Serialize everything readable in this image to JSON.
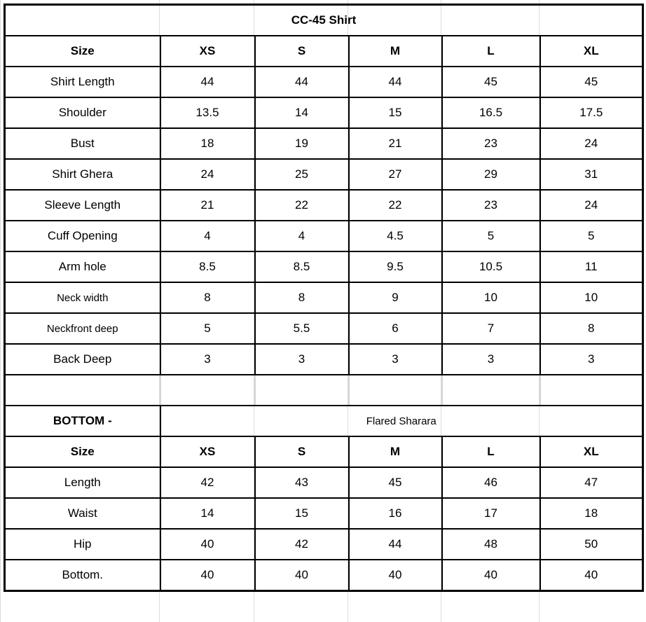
{
  "shirt": {
    "title": "CC-45 Shirt",
    "header": [
      "Size",
      "XS",
      "S",
      "M",
      "L",
      "XL"
    ],
    "rows": [
      {
        "label": "Shirt Length",
        "values": [
          "44",
          "44",
          "44",
          "45",
          "45"
        ]
      },
      {
        "label": "Shoulder",
        "values": [
          "13.5",
          "14",
          "15",
          "16.5",
          "17.5"
        ]
      },
      {
        "label": "Bust",
        "values": [
          "18",
          "19",
          "21",
          "23",
          "24"
        ]
      },
      {
        "label": "Shirt Ghera",
        "values": [
          "24",
          "25",
          "27",
          "29",
          "31"
        ]
      },
      {
        "label": "Sleeve Length",
        "values": [
          "21",
          "22",
          "22",
          "23",
          "24"
        ]
      },
      {
        "label": "Cuff Opening",
        "values": [
          "4",
          "4",
          "4.5",
          "5",
          "5"
        ]
      },
      {
        "label": "Arm hole",
        "values": [
          "8.5",
          "8.5",
          "9.5",
          "10.5",
          "11"
        ]
      },
      {
        "label": "Neck width",
        "values": [
          "8",
          "8",
          "9",
          "10",
          "10"
        ],
        "small": true
      },
      {
        "label": "Neckfront deep",
        "values": [
          "5",
          "5.5",
          "6",
          "7",
          "8"
        ],
        "small": true
      },
      {
        "label": "Back Deep",
        "values": [
          "3",
          "3",
          "3",
          "3",
          "3"
        ]
      }
    ]
  },
  "bottom": {
    "title": "BOTTOM -",
    "style": "Flared Sharara",
    "header": [
      "Size",
      "XS",
      "S",
      "M",
      "L",
      "XL"
    ],
    "rows": [
      {
        "label": "Length",
        "values": [
          "42",
          "43",
          "45",
          "46",
          "47"
        ]
      },
      {
        "label": "Waist",
        "values": [
          "14",
          "15",
          "16",
          "17",
          "18"
        ]
      },
      {
        "label": "Hip",
        "values": [
          "40",
          "42",
          "44",
          "48",
          "50"
        ]
      },
      {
        "label": "Bottom.",
        "values": [
          "40",
          "40",
          "40",
          "40",
          "40"
        ]
      }
    ]
  }
}
